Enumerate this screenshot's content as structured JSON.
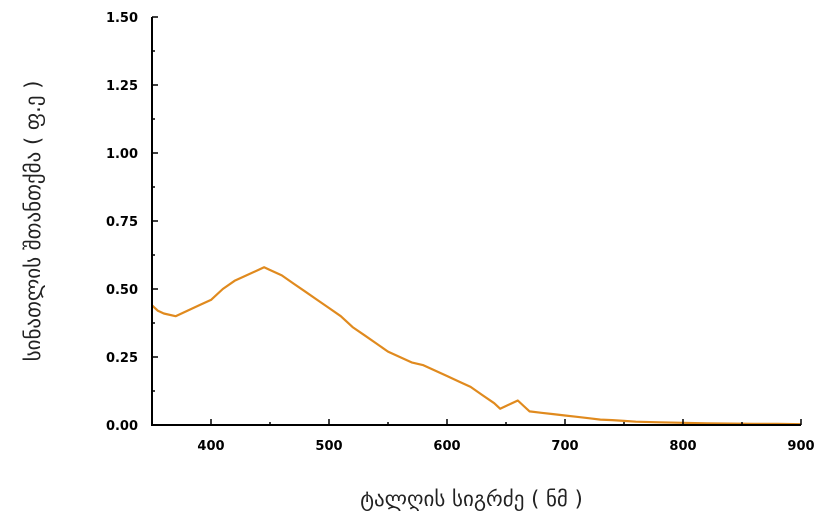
{
  "chart_data": {
    "type": "line",
    "title": "",
    "xlabel": "ტალღის სიგრძე ( ნმ )",
    "ylabel": "სინათლის შთანთქმა ( ფ.ე )",
    "xlim": [
      350,
      900
    ],
    "ylim": [
      0,
      1.5
    ],
    "x_ticks": [
      400,
      500,
      600,
      700,
      800,
      900
    ],
    "x_tick_labels": [
      "400",
      "500",
      "600",
      "700",
      "800",
      "900"
    ],
    "y_ticks": [
      0,
      0.25,
      0.5,
      0.75,
      1.0,
      1.25,
      1.5
    ],
    "y_tick_labels": [
      "0.00",
      "0.25",
      "0.50",
      "0.75",
      "1.00",
      "1.25",
      "1.50"
    ],
    "grid": false,
    "line_color": "#E08A1E",
    "series": [
      {
        "x": [
          350,
          355,
          360,
          370,
          380,
          390,
          400,
          410,
          420,
          430,
          440,
          445,
          450,
          460,
          470,
          480,
          490,
          500,
          510,
          520,
          530,
          540,
          550,
          560,
          570,
          580,
          590,
          600,
          610,
          620,
          630,
          640,
          645,
          650,
          655,
          660,
          665,
          670,
          680,
          690,
          700,
          710,
          720,
          730,
          740,
          750,
          760,
          780,
          800,
          820,
          840,
          860,
          880,
          900
        ],
        "y": [
          0.44,
          0.42,
          0.41,
          0.4,
          0.42,
          0.44,
          0.46,
          0.5,
          0.53,
          0.55,
          0.57,
          0.58,
          0.57,
          0.55,
          0.52,
          0.49,
          0.46,
          0.43,
          0.4,
          0.36,
          0.33,
          0.3,
          0.27,
          0.25,
          0.23,
          0.22,
          0.2,
          0.18,
          0.16,
          0.14,
          0.11,
          0.08,
          0.06,
          0.07,
          0.08,
          0.09,
          0.07,
          0.05,
          0.045,
          0.04,
          0.035,
          0.03,
          0.025,
          0.02,
          0.018,
          0.015,
          0.012,
          0.01,
          0.008,
          0.006,
          0.005,
          0.004,
          0.004,
          0.003
        ]
      }
    ]
  }
}
